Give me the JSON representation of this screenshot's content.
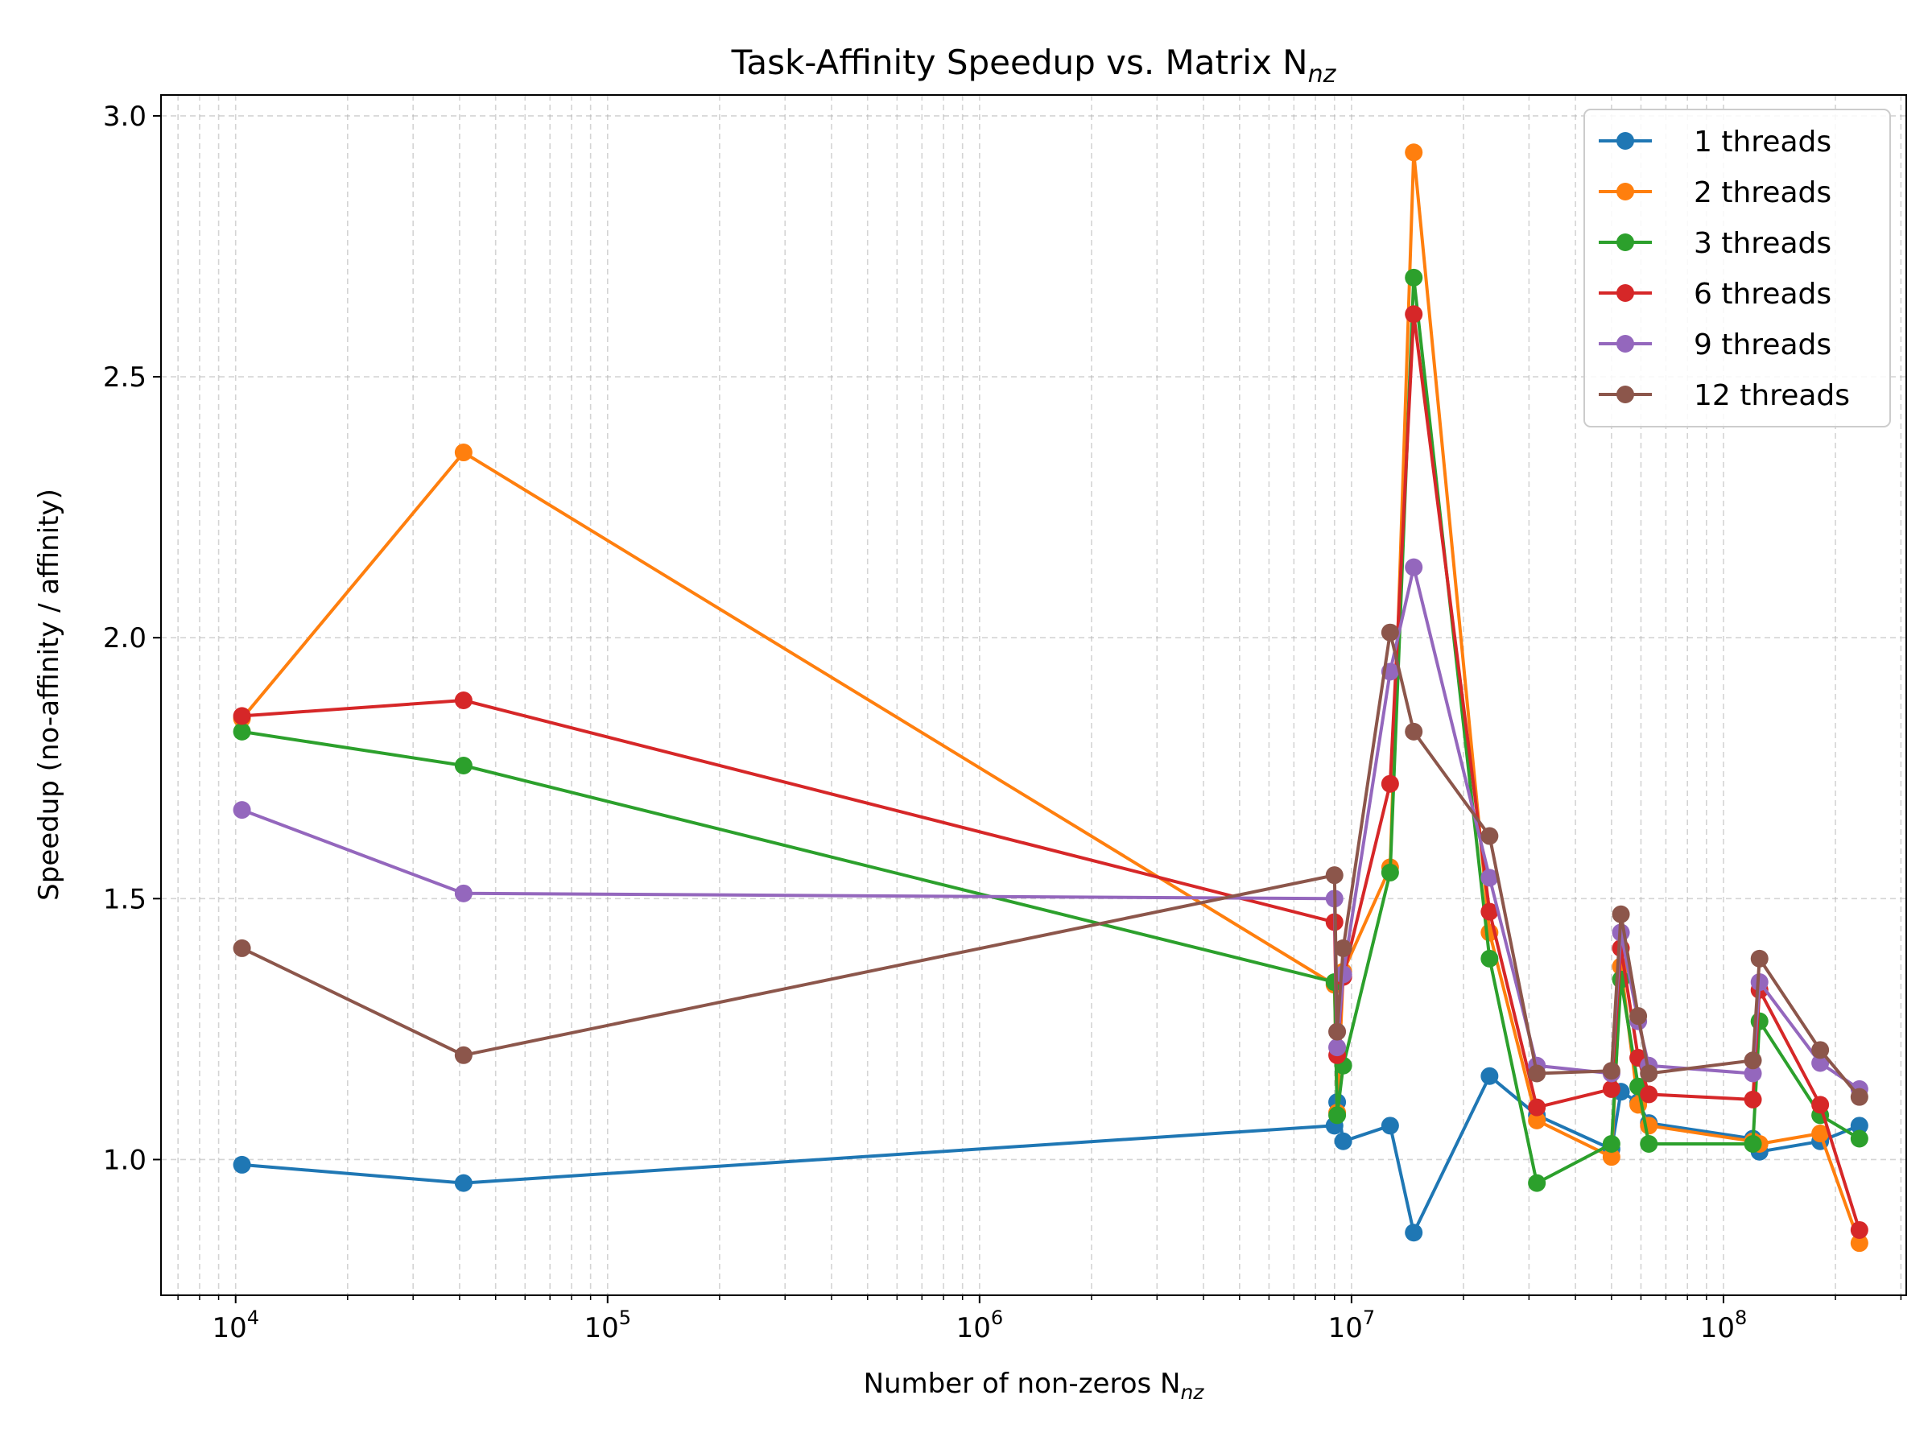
{
  "chart_data": {
    "type": "line",
    "title": "Task-Affinity Speedup vs. Matrix N",
    "title_sub": "nz",
    "xlabel": "Number of non-zeros N",
    "xlabel_sub": "nz",
    "ylabel": "Speedup (no-affinity / affinity)",
    "xscale": "log",
    "xlim": [
      6300,
      310000000
    ],
    "ylim": [
      0.74,
      3.04
    ],
    "x_ticks": [
      10000,
      100000,
      1000000,
      10000000,
      100000000
    ],
    "x_tick_labels": [
      {
        "base": "10",
        "exp": "4"
      },
      {
        "base": "10",
        "exp": "5"
      },
      {
        "base": "10",
        "exp": "6"
      },
      {
        "base": "10",
        "exp": "7"
      },
      {
        "base": "10",
        "exp": "8"
      }
    ],
    "y_ticks": [
      1.0,
      1.5,
      2.0,
      2.5,
      3.0
    ],
    "y_tick_labels": [
      "1.0",
      "1.5",
      "2.0",
      "2.5",
      "3.0"
    ],
    "grid": true,
    "legend_position": "top-right",
    "series": [
      {
        "name": "1 threads",
        "color": "#1f77b4",
        "points": [
          [
            10400,
            0.99
          ],
          [
            41000,
            0.955
          ],
          [
            9000000,
            1.065
          ],
          [
            9150000,
            1.11
          ],
          [
            9500000,
            1.035
          ],
          [
            12700000,
            1.065
          ],
          [
            14700000,
            0.86
          ],
          [
            23500000,
            1.16
          ],
          [
            31500000,
            1.085
          ],
          [
            50000000,
            1.02
          ],
          [
            53000000,
            1.13
          ],
          [
            59000000,
            1.11
          ],
          [
            63000000,
            1.07
          ],
          [
            120000000,
            1.04
          ],
          [
            125000000,
            1.015
          ],
          [
            182000000,
            1.035
          ],
          [
            232000000,
            1.065
          ]
        ]
      },
      {
        "name": "2 threads",
        "color": "#ff7f0e",
        "points": [
          [
            10400,
            1.845
          ],
          [
            41000,
            2.355
          ],
          [
            9000000,
            1.335
          ],
          [
            9150000,
            1.09
          ],
          [
            9500000,
            1.36
          ],
          [
            12700000,
            1.56
          ],
          [
            14700000,
            2.93
          ],
          [
            23500000,
            1.435
          ],
          [
            31500000,
            1.075
          ],
          [
            50000000,
            1.005
          ],
          [
            53000000,
            1.37
          ],
          [
            59000000,
            1.105
          ],
          [
            63000000,
            1.065
          ],
          [
            120000000,
            1.035
          ],
          [
            125000000,
            1.03
          ],
          [
            182000000,
            1.05
          ],
          [
            232000000,
            0.84
          ]
        ]
      },
      {
        "name": "3 threads",
        "color": "#2ca02c",
        "points": [
          [
            10400,
            1.82
          ],
          [
            41000,
            1.755
          ],
          [
            9000000,
            1.34
          ],
          [
            9150000,
            1.085
          ],
          [
            9500000,
            1.18
          ],
          [
            12700000,
            1.55
          ],
          [
            14700000,
            2.69
          ],
          [
            23500000,
            1.385
          ],
          [
            31500000,
            0.955
          ],
          [
            50000000,
            1.03
          ],
          [
            53000000,
            1.345
          ],
          [
            59000000,
            1.14
          ],
          [
            63000000,
            1.03
          ],
          [
            120000000,
            1.03
          ],
          [
            125000000,
            1.265
          ],
          [
            182000000,
            1.085
          ],
          [
            232000000,
            1.04
          ]
        ]
      },
      {
        "name": "6 threads",
        "color": "#d62728",
        "points": [
          [
            10400,
            1.85
          ],
          [
            41000,
            1.88
          ],
          [
            9000000,
            1.455
          ],
          [
            9150000,
            1.2
          ],
          [
            9500000,
            1.35
          ],
          [
            12700000,
            1.72
          ],
          [
            14700000,
            2.62
          ],
          [
            23500000,
            1.475
          ],
          [
            31500000,
            1.1
          ],
          [
            50000000,
            1.135
          ],
          [
            53000000,
            1.405
          ],
          [
            59000000,
            1.195
          ],
          [
            63000000,
            1.125
          ],
          [
            120000000,
            1.115
          ],
          [
            125000000,
            1.325
          ],
          [
            182000000,
            1.105
          ],
          [
            232000000,
            0.865
          ]
        ]
      },
      {
        "name": "9 threads",
        "color": "#9467bd",
        "points": [
          [
            10400,
            1.67
          ],
          [
            41000,
            1.51
          ],
          [
            9000000,
            1.5
          ],
          [
            9150000,
            1.215
          ],
          [
            9500000,
            1.355
          ],
          [
            12700000,
            1.935
          ],
          [
            14700000,
            2.135
          ],
          [
            23500000,
            1.54
          ],
          [
            31500000,
            1.18
          ],
          [
            50000000,
            1.165
          ],
          [
            53000000,
            1.435
          ],
          [
            59000000,
            1.265
          ],
          [
            63000000,
            1.18
          ],
          [
            120000000,
            1.165
          ],
          [
            125000000,
            1.34
          ],
          [
            182000000,
            1.185
          ],
          [
            232000000,
            1.135
          ]
        ]
      },
      {
        "name": "12 threads",
        "color": "#8c564b",
        "points": [
          [
            10400,
            1.405
          ],
          [
            41000,
            1.2
          ],
          [
            9000000,
            1.545
          ],
          [
            9150000,
            1.245
          ],
          [
            9500000,
            1.405
          ],
          [
            12700000,
            2.01
          ],
          [
            14700000,
            1.82
          ],
          [
            23500000,
            1.62
          ],
          [
            31500000,
            1.165
          ],
          [
            50000000,
            1.17
          ],
          [
            53000000,
            1.47
          ],
          [
            59000000,
            1.275
          ],
          [
            63000000,
            1.165
          ],
          [
            120000000,
            1.19
          ],
          [
            125000000,
            1.385
          ],
          [
            182000000,
            1.21
          ],
          [
            232000000,
            1.12
          ]
        ]
      }
    ]
  }
}
